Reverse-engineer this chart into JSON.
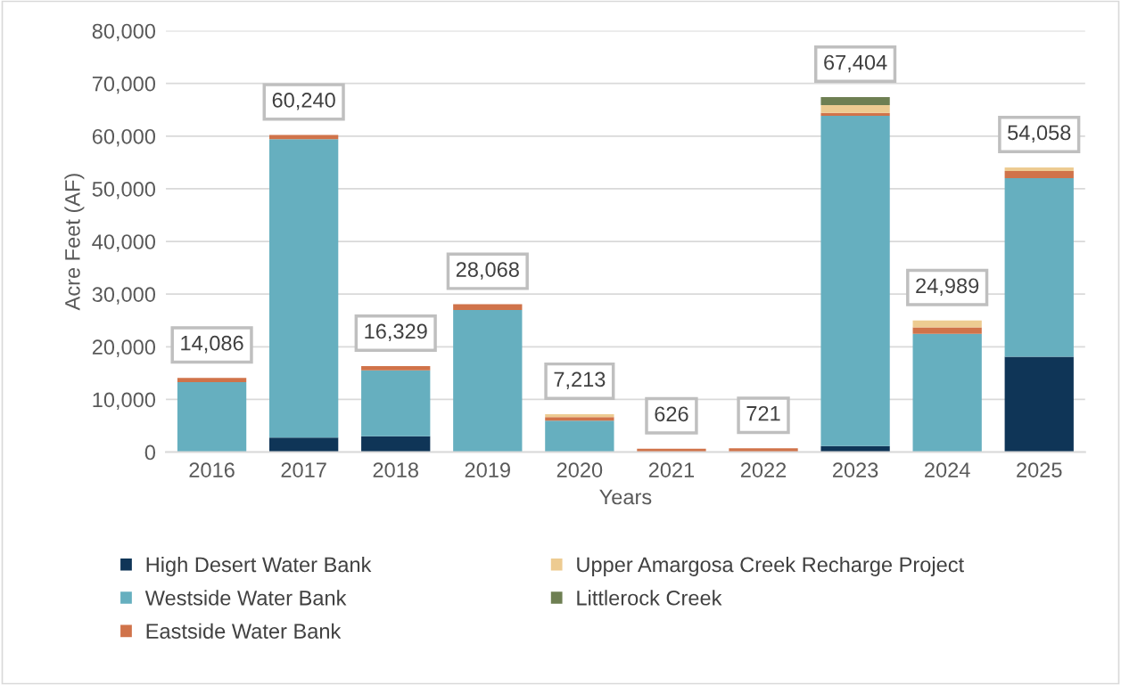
{
  "chart_data": {
    "type": "bar",
    "stacked": true,
    "xlabel": "Years",
    "ylabel": "Acre Feet (AF)",
    "categories": [
      "2016",
      "2017",
      "2018",
      "2019",
      "2020",
      "2021",
      "2022",
      "2023",
      "2024",
      "2025"
    ],
    "series": [
      {
        "name": "High Desert Water Bank",
        "color": "#0f3557",
        "values": [
          0,
          2760,
          3000,
          0,
          0,
          0,
          0,
          1130,
          0,
          18100
        ]
      },
      {
        "name": "Westside Water Bank",
        "color": "#66afbf",
        "values": [
          13286,
          56680,
          12529,
          26968,
          5973,
          0,
          0,
          62724,
          22449,
          33928
        ]
      },
      {
        "name": "Eastside Water Bank",
        "color": "#d0734a",
        "values": [
          800,
          800,
          800,
          1100,
          680,
          626,
          721,
          560,
          1240,
          1350
        ]
      },
      {
        "name": "Upper Amargosa Creek Recharge Project",
        "color": "#edcb91",
        "values": [
          0,
          0,
          0,
          0,
          560,
          0,
          0,
          1470,
          1300,
          680
        ]
      },
      {
        "name": "Littlerock Creek",
        "color": "#6e7f52",
        "values": [
          0,
          0,
          0,
          0,
          0,
          0,
          0,
          1520,
          0,
          0
        ]
      }
    ],
    "totals": [
      "14,086",
      "60,240",
      "16,329",
      "28,068",
      "7,213",
      "626",
      "721",
      "67,404",
      "24,989",
      "54,058"
    ],
    "ylim": [
      0,
      80000
    ],
    "yticks": [
      {
        "value": 0,
        "label": "0"
      },
      {
        "value": 10000,
        "label": "10,000"
      },
      {
        "value": 20000,
        "label": "20,000"
      },
      {
        "value": 30000,
        "label": "30,000"
      },
      {
        "value": 40000,
        "label": "40,000"
      },
      {
        "value": 50000,
        "label": "50,000"
      },
      {
        "value": 60000,
        "label": "60,000"
      },
      {
        "value": 70000,
        "label": "70,000"
      },
      {
        "value": 80000,
        "label": "80,000"
      }
    ],
    "grid": "y",
    "legend": "bottom"
  }
}
